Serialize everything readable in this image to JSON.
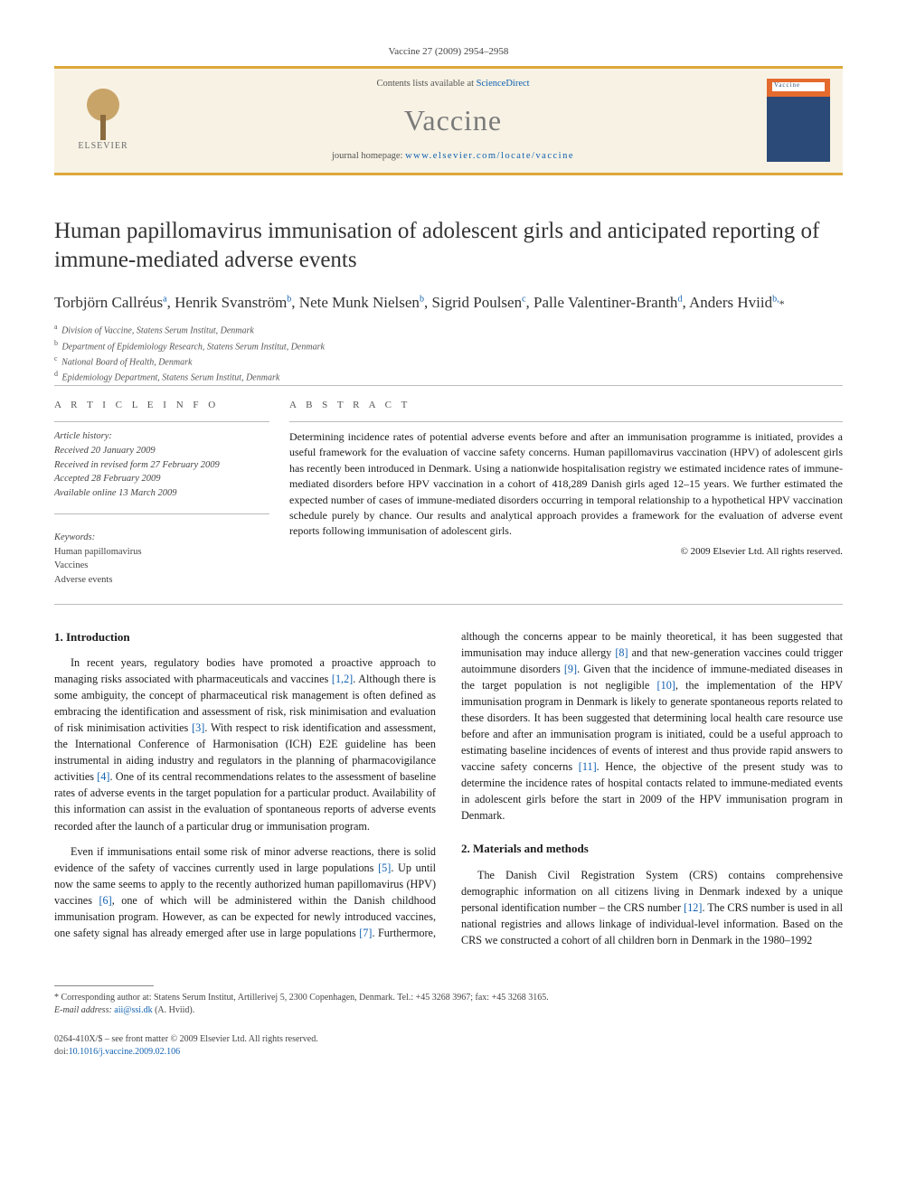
{
  "header": {
    "citation": "Vaccine 27 (2009) 2954–2958",
    "contents_prefix": "Contents lists available at ",
    "contents_link": "ScienceDirect",
    "journal": "Vaccine",
    "homepage_prefix": "journal homepage: ",
    "homepage_url": "www.elsevier.com/locate/vaccine",
    "publisher": "ELSEVIER",
    "cover_label": "Vaccine",
    "banner_bg": "#f7f2e4",
    "banner_border": "#dda838"
  },
  "article": {
    "title": "Human papillomavirus immunisation of adolescent girls and anticipated reporting of immune-mediated adverse events",
    "authors_html": "Torbjörn Callréus<sup>a</sup>, Henrik Svanström<sup>b</sup>, Nete Munk Nielsen<sup>b</sup>, Sigrid Poulsen<sup>c</sup>, Palle Valentiner-Branth<sup>d</sup>, Anders Hviid<sup>b,</sup><span class='star'>*</span>",
    "affiliations": [
      {
        "key": "a",
        "text": "Division of Vaccine, Statens Serum Institut, Denmark"
      },
      {
        "key": "b",
        "text": "Department of Epidemiology Research, Statens Serum Institut, Denmark"
      },
      {
        "key": "c",
        "text": "National Board of Health, Denmark"
      },
      {
        "key": "d",
        "text": "Epidemiology Department, Statens Serum Institut, Denmark"
      }
    ]
  },
  "info": {
    "head": "A R T I C L E   I N F O",
    "history_label": "Article history:",
    "received": "Received 20 January 2009",
    "revised": "Received in revised form 27 February 2009",
    "accepted": "Accepted 28 February 2009",
    "online": "Available online 13 March 2009",
    "keywords_label": "Keywords:",
    "keywords": [
      "Human papillomavirus",
      "Vaccines",
      "Adverse events"
    ]
  },
  "abstract": {
    "head": "A B S T R A C T",
    "text": "Determining incidence rates of potential adverse events before and after an immunisation programme is initiated, provides a useful framework for the evaluation of vaccine safety concerns. Human papillomavirus vaccination (HPV) of adolescent girls has recently been introduced in Denmark. Using a nationwide hospitalisation registry we estimated incidence rates of immune-mediated disorders before HPV vaccination in a cohort of 418,289 Danish girls aged 12–15 years. We further estimated the expected number of cases of immune-mediated disorders occurring in temporal relationship to a hypothetical HPV vaccination schedule purely by chance. Our results and analytical approach provides a framework for the evaluation of adverse event reports following immunisation of adolescent girls.",
    "copyright": "© 2009 Elsevier Ltd. All rights reserved."
  },
  "sections": {
    "intro_head": "1.  Introduction",
    "intro_p1_a": "In recent years, regulatory bodies have promoted a proactive approach to managing risks associated with pharmaceuticals and vaccines ",
    "intro_p1_b": ". Although there is some ambiguity, the concept of pharmaceutical risk management is often defined as embracing the identification and assessment of risk, risk minimisation and evaluation of risk minimisation activities ",
    "intro_p1_c": ". With respect to risk identification and assessment, the International Conference of Harmonisation (ICH) E2E guideline has been instrumental in aiding industry and regulators in the planning of pharmacovigilance activities ",
    "intro_p1_d": ". One of its central recommendations relates to the assessment of baseline rates of adverse events in the target population for a particular product. Availability of this information can assist in the evaluation of spontaneous reports of adverse events recorded after the launch of a particular drug or immunisation program.",
    "intro_p2_a": "Even if immunisations entail some risk of minor adverse reactions, there is solid evidence of the safety of vaccines currently used in large populations ",
    "intro_p2_b": ". Up until now the same seems to apply to the recently authorized human papillomavirus (HPV) vaccines ",
    "intro_p2_c": ", one of which will be administered within the Danish ",
    "intro_p2_d": "childhood immunisation program. However, as can be expected for newly introduced vaccines, one safety signal has already emerged after use in large populations ",
    "intro_p2_e": ". Furthermore, although the concerns appear to be mainly theoretical, it has been suggested that immunisation may induce allergy ",
    "intro_p2_f": " and that new-generation vaccines could trigger autoimmune disorders ",
    "intro_p2_g": ". Given that the incidence of immune-mediated diseases in the target population is not negligible ",
    "intro_p2_h": ", the implementation of the HPV immunisation program in Denmark is likely to generate spontaneous reports related to these disorders. It has been suggested that determining local health care resource use before and after an immunisation program is initiated, could be a useful approach to estimating baseline incidences of events of interest and thus provide rapid answers to vaccine safety concerns ",
    "intro_p2_i": ". Hence, the objective of the present study was to determine the incidence rates of hospital contacts related to immune-mediated events in adolescent girls before the start in 2009 of the HPV immunisation program in Denmark.",
    "methods_head": "2.  Materials and methods",
    "methods_p1_a": "The Danish Civil Registration System (CRS) contains comprehensive demographic information on all citizens living in Denmark indexed by a unique personal identification number – the CRS number ",
    "methods_p1_b": ". The CRS number is used in all national registries and allows linkage of individual-level information. Based on the CRS we constructed a cohort of all children born in Denmark in the 1980–1992"
  },
  "refs": {
    "r12": "[1,2]",
    "r3": "[3]",
    "r4": "[4]",
    "r5": "[5]",
    "r6": "[6]",
    "r7": "[7]",
    "r8": "[8]",
    "r9": "[9]",
    "r10": "[10]",
    "r11": "[11]",
    "r12b": "[12]"
  },
  "footnotes": {
    "corr": "* Corresponding author at: Statens Serum Institut, Artillerivej 5, 2300 Copenhagen, Denmark. Tel.: +45 3268 3967; fax: +45 3268 3165.",
    "email_label": "E-mail address: ",
    "email": "aii@ssi.dk",
    "email_who": " (A. Hviid)."
  },
  "footer": {
    "issn": "0264-410X/$ – see front matter © 2009 Elsevier Ltd. All rights reserved.",
    "doi_label": "doi:",
    "doi": "10.1016/j.vaccine.2009.02.106"
  },
  "colors": {
    "link": "#1160b0",
    "text": "#1a1a1a",
    "muted": "#555555"
  }
}
